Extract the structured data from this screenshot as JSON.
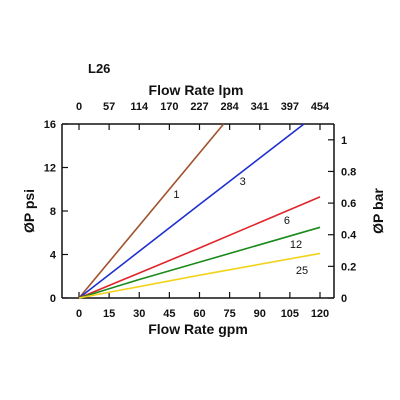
{
  "chart_data": {
    "type": "line",
    "title": "L26",
    "xlabel": "Flow Rate gpm",
    "ylabel": "ØP psi",
    "top_xlabel": "Flow Rate lpm",
    "right_ylabel": "ØP bar",
    "xlim": [
      0,
      120
    ],
    "ylim": [
      0,
      16
    ],
    "right_ylim": [
      0,
      1.1
    ],
    "x_ticks": [
      "0",
      "15",
      "30",
      "45",
      "60",
      "75",
      "90",
      "105",
      "120"
    ],
    "y_ticks": [
      "0",
      "4",
      "8",
      "12",
      "16"
    ],
    "top_x_ticks": [
      "0",
      "57",
      "114",
      "170",
      "227",
      "284",
      "341",
      "397",
      "454"
    ],
    "right_y_ticks": [
      "0",
      "0.2",
      "0.4",
      "0.6",
      "0.8",
      "1"
    ],
    "grid": false,
    "series": [
      {
        "name": "1",
        "color": "#a0522d",
        "x": [
          0,
          72
        ],
        "y": [
          0,
          16
        ]
      },
      {
        "name": "3",
        "color": "#1f2fd0",
        "x": [
          0,
          60,
          112
        ],
        "y": [
          0,
          8.6,
          16
        ]
      },
      {
        "name": "6",
        "color": "#e0242a",
        "x": [
          0,
          60,
          120
        ],
        "y": [
          0,
          4.6,
          9.3
        ]
      },
      {
        "name": "12",
        "color": "#1a8a1a",
        "x": [
          0,
          30,
          60,
          120
        ],
        "y": [
          0,
          1.7,
          3.3,
          6.5
        ]
      },
      {
        "name": "25",
        "color": "#f2d21a",
        "x": [
          0,
          60,
          120
        ],
        "y": [
          0,
          2.1,
          4.1
        ]
      }
    ]
  }
}
